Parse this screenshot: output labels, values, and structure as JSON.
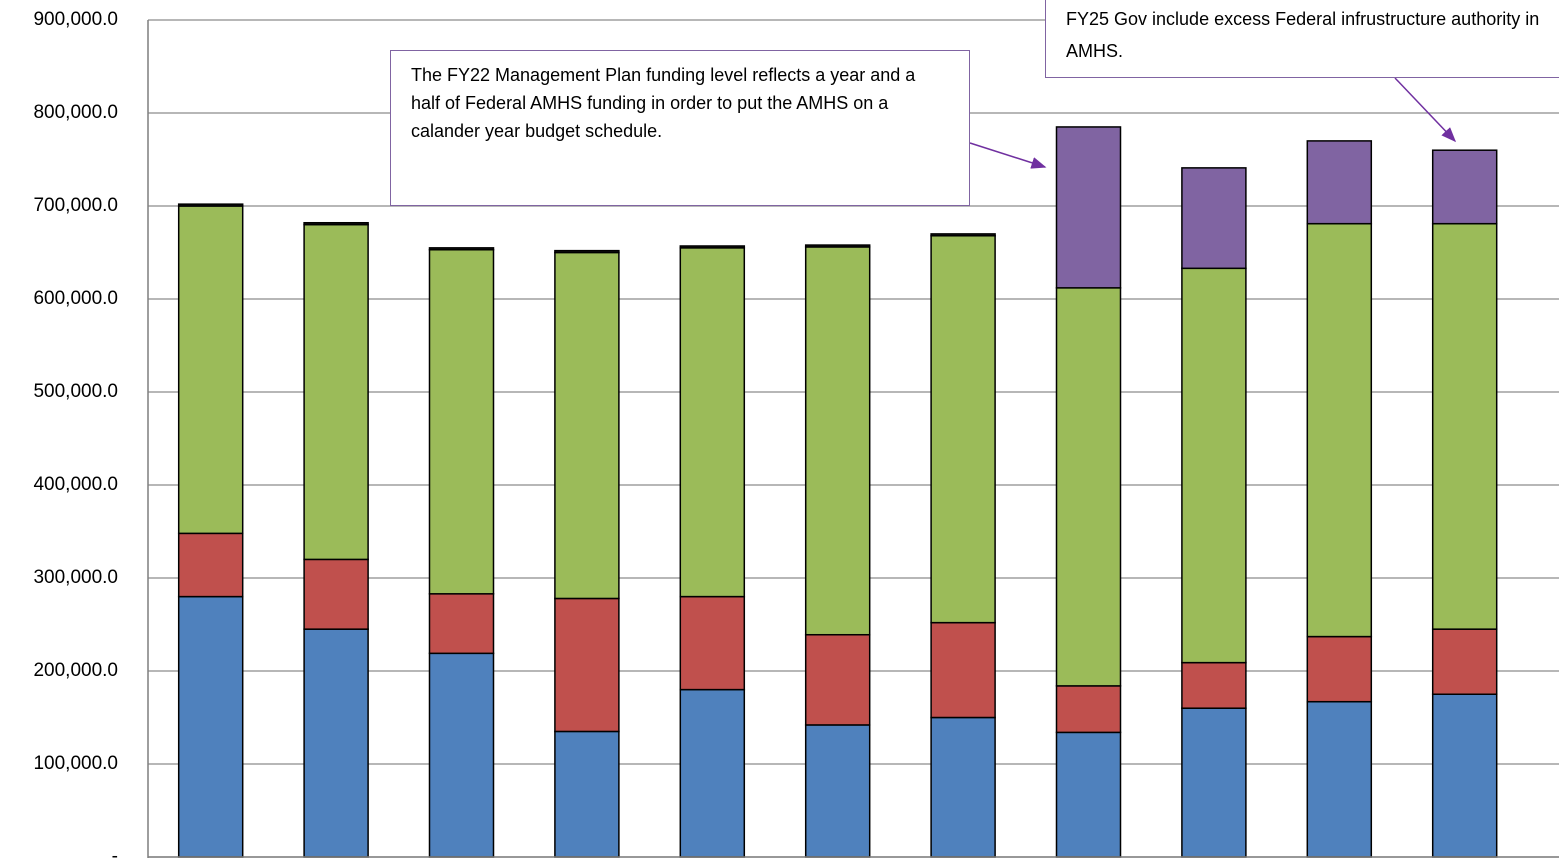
{
  "chart_data": {
    "type": "stacked_bar",
    "categories": [
      null,
      null,
      null,
      null,
      null,
      null,
      null,
      null,
      null,
      null,
      null
    ],
    "series": [
      {
        "color": "#4f81bd",
        "values": [
          280000,
          245000,
          219000,
          135000,
          180000,
          142000,
          150000,
          134000,
          160000,
          167000,
          175000
        ]
      },
      {
        "color": "#c0504d",
        "values": [
          68000,
          75000,
          64000,
          143000,
          100000,
          97000,
          102000,
          50000,
          49000,
          70000,
          70000
        ]
      },
      {
        "color": "#9bbb59",
        "values": [
          352000,
          360000,
          370000,
          372000,
          375000,
          417000,
          416000,
          428000,
          424000,
          444000,
          436000
        ]
      },
      {
        "color": "#1a1a1a",
        "values": [
          2000,
          2000,
          2000,
          2000,
          2000,
          2000,
          2000,
          0,
          0,
          0,
          0
        ]
      },
      {
        "color": "#8064a2",
        "values": [
          0,
          0,
          0,
          0,
          0,
          0,
          0,
          173000,
          108000,
          89000,
          79000
        ]
      }
    ],
    "ylim": [
      0,
      900000
    ],
    "yticks": [
      {
        "value": 0,
        "label": "-"
      },
      {
        "value": 100000,
        "label": "100,000.0"
      },
      {
        "value": 200000,
        "label": "200,000.0"
      },
      {
        "value": 300000,
        "label": "300,000.0"
      },
      {
        "value": 400000,
        "label": "400,000.0"
      },
      {
        "value": 500000,
        "label": "500,000.0"
      },
      {
        "value": 600000,
        "label": "600,000.0"
      },
      {
        "value": 700000,
        "label": "700,000.0"
      },
      {
        "value": 800000,
        "label": "800,000.0"
      },
      {
        "value": 900000,
        "label": "900,000.0"
      }
    ],
    "grid": true,
    "annotations": [
      "The FY22 Management Plan funding level reflects a year and a half of Federal AMHS funding in order to put the AMHS on a calander year budget schedule.",
      "FY25 Gov include excess Federal infrustructure authority in AMHS."
    ]
  }
}
